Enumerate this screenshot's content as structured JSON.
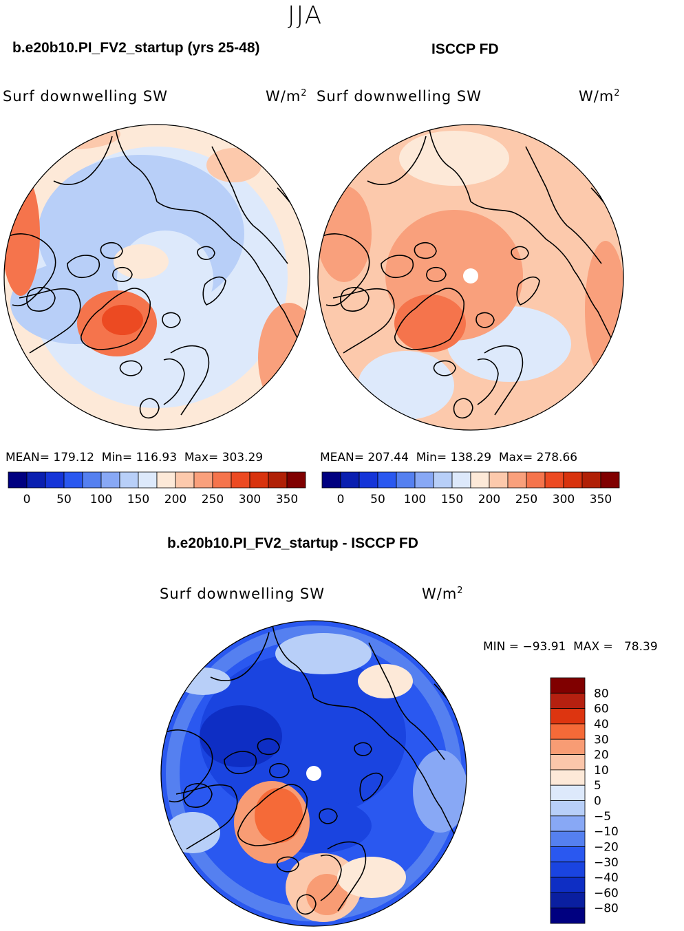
{
  "page": {
    "season": "JJA",
    "field_label": "Surf downwelling SW",
    "units_base": "W/m",
    "units_exp": "2"
  },
  "panels": {
    "model": {
      "title": "b.e20b10.PI_FV2_startup (yrs 25-48)",
      "stats": {
        "mean_label": "MEAN=",
        "mean": "179.12",
        "min_label": "Min=",
        "min": "116.93",
        "max_label": "Max=",
        "max": "303.29"
      }
    },
    "obs": {
      "title": "ISCCP FD",
      "stats": {
        "mean_label": "MEAN=",
        "mean": "207.44",
        "min_label": "Min=",
        "min": "138.29",
        "max_label": "Max=",
        "max": "278.66"
      }
    },
    "diff": {
      "title": "b.e20b10.PI_FV2_startup - ISCCP FD",
      "stats_text": "MIN = −93.91  MAX =   78.39"
    }
  },
  "colorbars": {
    "abs_colors": [
      "#000080",
      "#0a1fb0",
      "#1535d8",
      "#2a58f0",
      "#5580f0",
      "#88a8f5",
      "#b8cff8",
      "#dde9fb",
      "#fde9d8",
      "#fcc9ac",
      "#f9a07c",
      "#f5744c",
      "#ec4a22",
      "#d8330e",
      "#b02006",
      "#800000"
    ],
    "abs_ticks": [
      "0",
      "50",
      "100",
      "150",
      "200",
      "250",
      "300",
      "350"
    ],
    "diff_colors": [
      "#800000",
      "#b52010",
      "#dd3510",
      "#f56a38",
      "#f89c74",
      "#fbc6aa",
      "#fde9d8",
      "#dde9fb",
      "#b8cff8",
      "#88a8f5",
      "#5580f0",
      "#2a58f0",
      "#1a44e0",
      "#0e2ec4",
      "#0a1fa0",
      "#000080"
    ],
    "diff_ticks": [
      "80",
      "60",
      "40",
      "30",
      "20",
      "10",
      "5",
      "0",
      "−5",
      "−10",
      "−20",
      "−30",
      "−40",
      "−60",
      "−80"
    ]
  },
  "map_colors": {
    "land_outline": "#000000",
    "pole_hole": "#ffffff"
  }
}
